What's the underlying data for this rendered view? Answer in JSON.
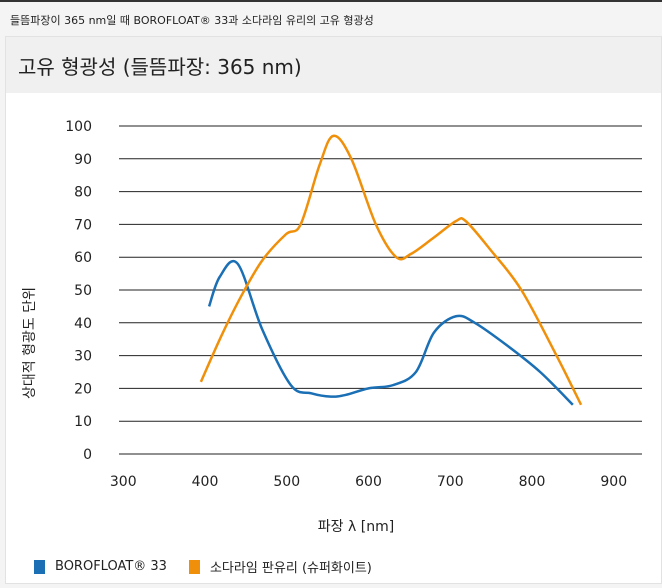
{
  "caption": "들뜸파장이 365 nm일 때 BOROFLOAT® 33과 소다라임 유리의 고유 형광성",
  "title": "고유 형광성 (들뜸파장: 365 nm)",
  "chart_data": {
    "type": "line",
    "title": "고유 형광성 (들뜸파장: 365 nm)",
    "xlabel": "파장 λ [nm]",
    "ylabel": "상대적 형광도 단위",
    "xlim": [
      300,
      900
    ],
    "ylim": [
      0,
      100
    ],
    "xticks": [
      300,
      400,
      500,
      600,
      700,
      800,
      900
    ],
    "yticks": [
      0,
      10,
      20,
      30,
      40,
      50,
      60,
      70,
      80,
      90,
      100
    ],
    "grid": "horizontal",
    "legend_position": "bottom-left",
    "series": [
      {
        "name": "BOROFLOAT® 33",
        "color": "#1a6fb5",
        "x": [
          405,
          418,
          440,
          470,
          505,
          530,
          554,
          572,
          600,
          630,
          658,
          680,
          707,
          730,
          770,
          810,
          850
        ],
        "y": [
          45,
          54,
          58,
          38,
          21,
          18.5,
          17.5,
          18,
          20,
          21,
          25,
          37,
          42,
          40,
          33,
          25,
          15
        ]
      },
      {
        "name": "소다라임 판유리 (슈퍼화이트)",
        "color": "#f0900a",
        "x": [
          395,
          420,
          444,
          470,
          499,
          517,
          540,
          557,
          579,
          609,
          634,
          652,
          680,
          707,
          719,
          750,
          787,
          830,
          860
        ],
        "y": [
          22,
          36,
          48,
          59,
          67,
          70,
          88,
          97,
          90,
          70,
          60,
          61,
          66,
          71,
          71,
          62,
          50,
          30,
          15
        ]
      }
    ]
  }
}
